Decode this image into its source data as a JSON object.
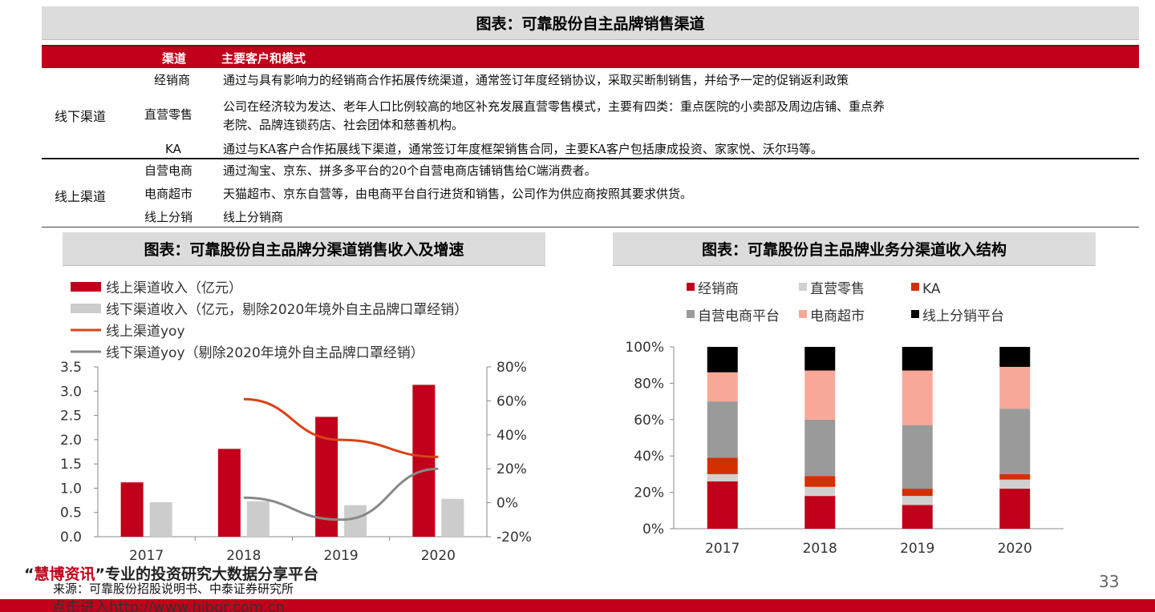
{
  "top_title": "图表：可靠股份自主品牌销售渠道",
  "table": {
    "headers": [
      "渠道",
      "主要客户和模式"
    ],
    "offline": {
      "category": "线下渠道",
      "rows": [
        {
          "channel": "经销商",
          "lines": [
            "通过与具有影响力的经销商合作拓展传统渠道，通常签订年度经销协议，采取买断制销售，并给予一定的促销返利政策"
          ]
        },
        {
          "channel": "直营零售",
          "lines": [
            "公司在经济较为发达、老年人口比例较高的地区补充发展直营零售模式，主要有四类：重点医院的小卖部及周边店铺、重点养",
            "老院、品牌连锁药店、社会团体和慈善机构。"
          ]
        },
        {
          "channel": "KA",
          "lines": [
            "通过与KA客户合作拓展线下渠道，通常签订年度框架销售合同，主要KA客户包括康成投资、家家悦、沃尔玛等。"
          ]
        }
      ]
    },
    "online": {
      "category": "线上渠道",
      "rows": [
        {
          "channel": "自营电商",
          "lines": [
            "通过淘宝、京东、拼多多平台的20个自营电商店铺销售给C端消费者。"
          ]
        },
        {
          "channel": "电商超市",
          "lines": [
            "天猫超市、京东自营等，由电商平台自行进货和销售，公司作为供应商按照其要求供货。"
          ]
        },
        {
          "channel": "线上分销",
          "lines": [
            "线上分销商"
          ]
        }
      ]
    }
  },
  "left_title": "图表：可靠股份自主品牌分渠道销售收入及增速",
  "right_title": "图表：可靠股份自主品牌业务分渠道收入结构",
  "chart_data": [
    {
      "type": "bar",
      "categories": [
        "2017",
        "2018",
        "2019",
        "2020"
      ],
      "series": [
        {
          "name": "线上渠道收入（亿元）",
          "kind": "bar",
          "color": "#c0001a",
          "values": [
            1.12,
            1.81,
            2.47,
            3.13
          ]
        },
        {
          "name": "线下渠道收入（亿元，剔除2020年境外自主品牌口罩经销）",
          "kind": "bar",
          "color": "#cccccc",
          "values": [
            0.71,
            0.73,
            0.65,
            0.78
          ]
        },
        {
          "name": "线上渠道yoy",
          "kind": "line",
          "axis": "right",
          "color": "#d84315",
          "values": [
            null,
            0.61,
            0.37,
            0.27
          ]
        },
        {
          "name": "线下渠道yoy（剔除2020年境外自主品牌口罩经销）",
          "kind": "line",
          "axis": "right",
          "color": "#888888",
          "values": [
            null,
            0.03,
            -0.1,
            0.2
          ]
        }
      ],
      "ylim": [
        0,
        3.5
      ],
      "yticks": [
        "0.0",
        "0.5",
        "1.0",
        "1.5",
        "2.0",
        "2.5",
        "3.0",
        "3.5"
      ],
      "y2lim": [
        -0.2,
        0.8
      ],
      "y2ticks": [
        "-20%",
        "0%",
        "20%",
        "40%",
        "60%",
        "80%"
      ],
      "legend": "top-left"
    },
    {
      "type": "bar",
      "stacked": true,
      "categories": [
        "2017",
        "2018",
        "2019",
        "2020"
      ],
      "series": [
        {
          "name": "经销商",
          "color": "#c0001a",
          "values": [
            26,
            18,
            13,
            22
          ]
        },
        {
          "name": "直营零售",
          "color": "#d0d0d0",
          "values": [
            4,
            5,
            5,
            5
          ]
        },
        {
          "name": "KA",
          "color": "#d33000",
          "values": [
            9,
            6,
            4,
            3
          ]
        },
        {
          "name": "自营电商平台",
          "color": "#9a9a9a",
          "values": [
            31,
            31,
            35,
            36
          ]
        },
        {
          "name": "电商超市",
          "color": "#f8a898",
          "values": [
            16,
            27,
            30,
            23
          ]
        },
        {
          "name": "线上分销平台",
          "color": "#000000",
          "values": [
            14,
            13,
            13,
            11
          ]
        }
      ],
      "ylim": [
        0,
        100
      ],
      "yticks": [
        "0%",
        "20%",
        "40%",
        "60%",
        "80%",
        "100%"
      ],
      "legend": "top"
    }
  ],
  "footer": {
    "watermark_quote_open": "“",
    "watermark_brand": "慧博资讯",
    "watermark_quote_close": "”",
    "watermark_tail": "专业的投资研究大数据分享平台",
    "source": "来源：可靠股份招股说明书、中泰证券研究所",
    "link": "点击进入http://www.hibor.com.cn",
    "page": "33"
  }
}
